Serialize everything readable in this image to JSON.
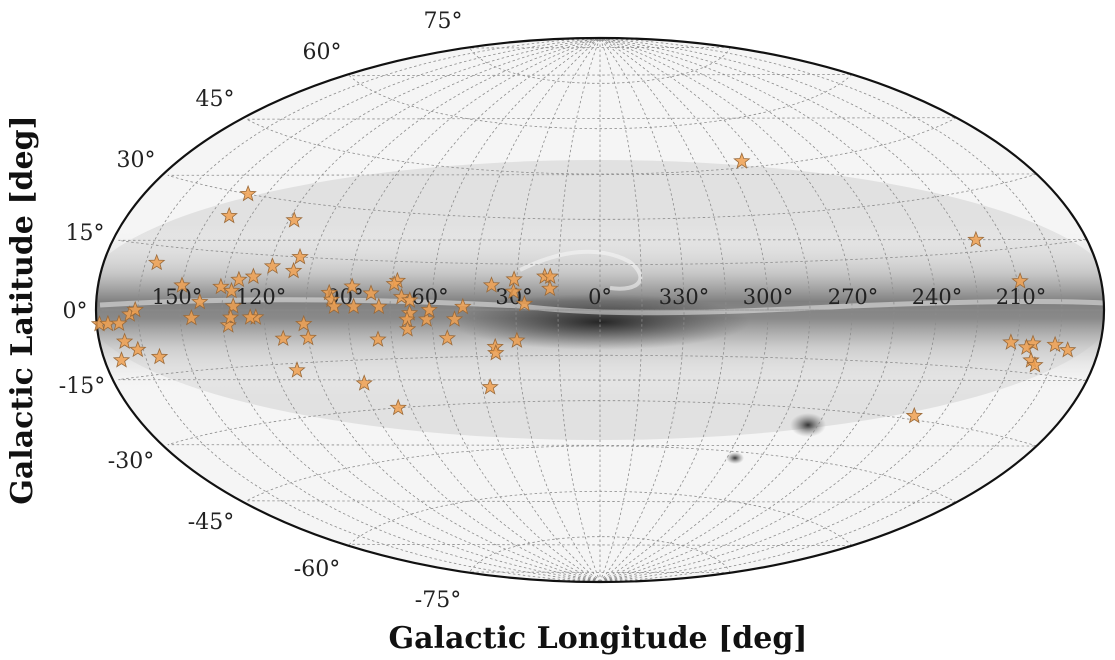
{
  "chart_data": {
    "type": "scatter",
    "projection": "aitoff",
    "xlabel": "Galactic Longitude [deg]",
    "ylabel": "Galactic Latitude [deg]",
    "marker": "star",
    "marker_color": "#f0a050",
    "background": "all-sky Milky Way greyscale map",
    "lon_ticks": [
      {
        "lon": 150,
        "label": "150°"
      },
      {
        "lon": 120,
        "label": "120°"
      },
      {
        "lon": 90,
        "label": "90°"
      },
      {
        "lon": 60,
        "label": "60°"
      },
      {
        "lon": 30,
        "label": "30°"
      },
      {
        "lon": 0,
        "label": "0°"
      },
      {
        "lon": 330,
        "label": "330°"
      },
      {
        "lon": 300,
        "label": "300°"
      },
      {
        "lon": 270,
        "label": "270°"
      },
      {
        "lon": 240,
        "label": "240°"
      },
      {
        "lon": 210,
        "label": "210°"
      }
    ],
    "lat_ticks": [
      {
        "lat": 75,
        "label": "75°"
      },
      {
        "lat": 60,
        "label": "60°"
      },
      {
        "lat": 45,
        "label": "45°"
      },
      {
        "lat": 30,
        "label": "30°"
      },
      {
        "lat": 15,
        "label": "15°"
      },
      {
        "lat": 0,
        "label": "0°"
      },
      {
        "lat": -15,
        "label": "-15°"
      },
      {
        "lat": -30,
        "label": "-30°"
      },
      {
        "lat": -45,
        "label": "-45°"
      },
      {
        "lat": -60,
        "label": "-60°"
      },
      {
        "lat": -75,
        "label": "-75°"
      }
    ],
    "points": [
      {
        "l": 293,
        "b": 47
      },
      {
        "l": 220,
        "b": 18
      },
      {
        "l": 235,
        "b": -29
      },
      {
        "l": 209,
        "b": 7
      },
      {
        "l": 196,
        "b": -8
      },
      {
        "l": 204,
        "b": -8
      },
      {
        "l": 212,
        "b": -8
      },
      {
        "l": 203,
        "b": -12
      },
      {
        "l": 206,
        "b": -9
      },
      {
        "l": 201,
        "b": -13
      },
      {
        "l": 191,
        "b": -9
      },
      {
        "l": 179,
        "b": -3
      },
      {
        "l": 176,
        "b": -3
      },
      {
        "l": 172,
        "b": -3
      },
      {
        "l": 168,
        "b": -1
      },
      {
        "l": 166,
        "b": 0
      },
      {
        "l": 171,
        "b": -7
      },
      {
        "l": 167,
        "b": -9
      },
      {
        "l": 174,
        "b": -11
      },
      {
        "l": 160,
        "b": -11
      },
      {
        "l": 161,
        "b": 11
      },
      {
        "l": 150,
        "b": 6
      },
      {
        "l": 142,
        "b": 30
      },
      {
        "l": 143,
        "b": 24
      },
      {
        "l": 143,
        "b": 2
      },
      {
        "l": 146,
        "b": -2
      },
      {
        "l": 136,
        "b": 6
      },
      {
        "l": 130,
        "b": 8
      },
      {
        "l": 125,
        "b": 9
      },
      {
        "l": 132,
        "b": 5
      },
      {
        "l": 131,
        "b": 1
      },
      {
        "l": 133,
        "b": -4
      },
      {
        "l": 132,
        "b": -2
      },
      {
        "l": 123,
        "b": -2
      },
      {
        "l": 125,
        "b": -2
      },
      {
        "l": 119,
        "b": 12
      },
      {
        "l": 111,
        "b": 11
      },
      {
        "l": 110,
        "b": 15
      },
      {
        "l": 118,
        "b": 25
      },
      {
        "l": 114,
        "b": -8
      },
      {
        "l": 106,
        "b": -4
      },
      {
        "l": 105,
        "b": -8
      },
      {
        "l": 112,
        "b": -17
      },
      {
        "l": 97,
        "b": 5
      },
      {
        "l": 96,
        "b": 3
      },
      {
        "l": 95,
        "b": 1
      },
      {
        "l": 89,
        "b": 7
      },
      {
        "l": 88,
        "b": 1
      },
      {
        "l": 82,
        "b": 5
      },
      {
        "l": 79,
        "b": 1
      },
      {
        "l": 73,
        "b": 9
      },
      {
        "l": 74,
        "b": 8
      },
      {
        "l": 71,
        "b": 4
      },
      {
        "l": 68,
        "b": 3
      },
      {
        "l": 68,
        "b": -1
      },
      {
        "l": 69,
        "b": -3
      },
      {
        "l": 69,
        "b": -6
      },
      {
        "l": 62,
        "b": -3
      },
      {
        "l": 61,
        "b": 0
      },
      {
        "l": 49,
        "b": 1
      },
      {
        "l": 52,
        "b": -3
      },
      {
        "l": 55,
        "b": -9
      },
      {
        "l": 80,
        "b": -9
      },
      {
        "l": 89,
        "b": -22
      },
      {
        "l": 80,
        "b": -30
      },
      {
        "l": 39,
        "b": 8
      },
      {
        "l": 31,
        "b": 10
      },
      {
        "l": 31,
        "b": 6
      },
      {
        "l": 27,
        "b": 2
      },
      {
        "l": 20,
        "b": 11
      },
      {
        "l": 18,
        "b": 11
      },
      {
        "l": 18,
        "b": 7
      },
      {
        "l": 38,
        "b": -12
      },
      {
        "l": 38,
        "b": -14
      },
      {
        "l": 30,
        "b": -10
      },
      {
        "l": 42,
        "b": -25
      }
    ]
  }
}
